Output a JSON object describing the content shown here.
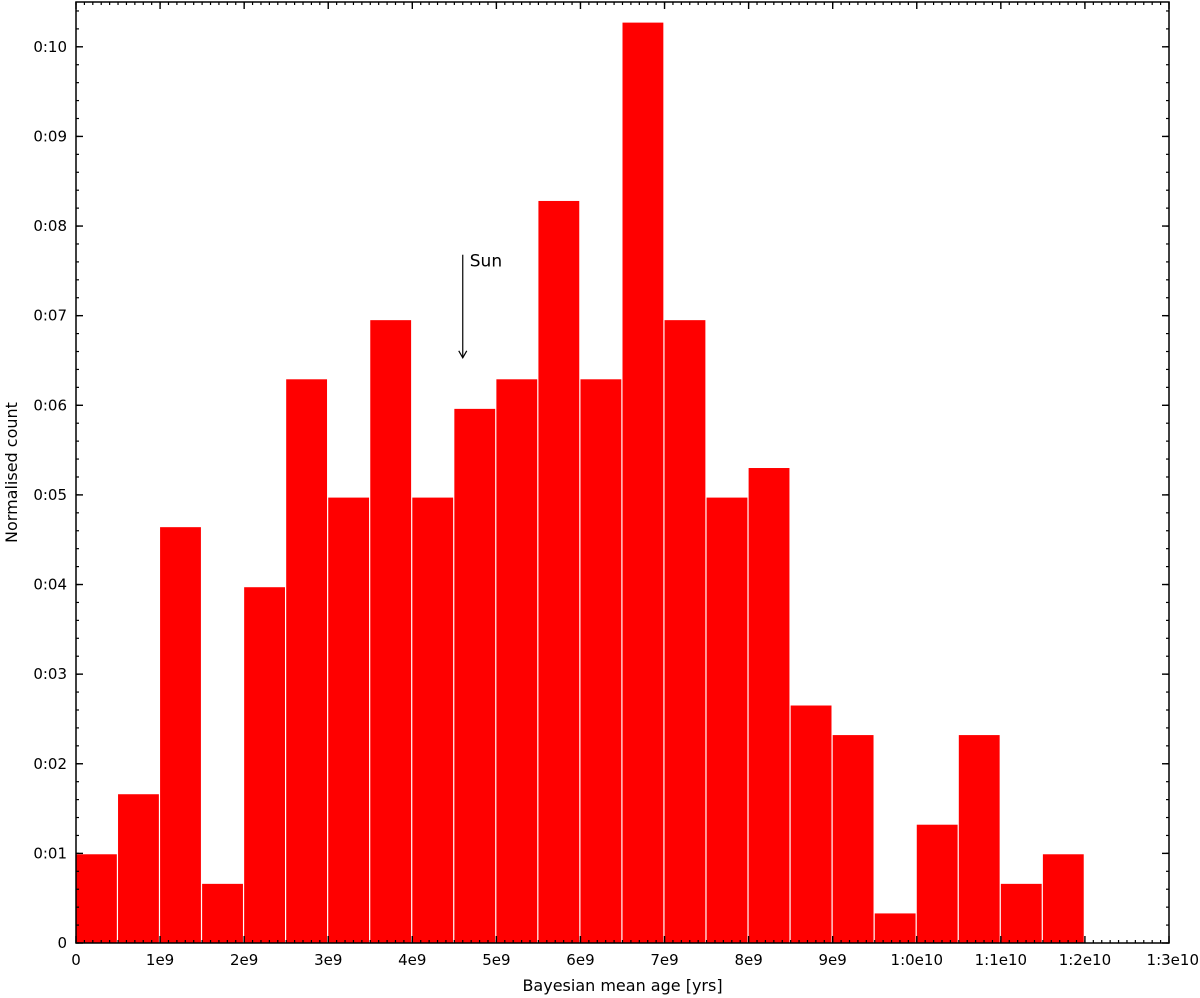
{
  "chart_data": {
    "type": "bar",
    "title": "",
    "xlabel": "Bayesian mean age [yrs]",
    "ylabel": "Normalised count",
    "xlim": [
      0,
      13000000000
    ],
    "ylim": [
      0,
      0.105
    ],
    "bin_width": 500000000,
    "bins": [
      {
        "start": 0,
        "value": 0.0099
      },
      {
        "start": 500000000,
        "value": 0.0166
      },
      {
        "start": 1000000000,
        "value": 0.0464
      },
      {
        "start": 1500000000,
        "value": 0.0066
      },
      {
        "start": 2000000000,
        "value": 0.0397
      },
      {
        "start": 2500000000,
        "value": 0.0629
      },
      {
        "start": 3000000000,
        "value": 0.0497
      },
      {
        "start": 3500000000,
        "value": 0.0695
      },
      {
        "start": 4000000000,
        "value": 0.0497
      },
      {
        "start": 4500000000,
        "value": 0.0596
      },
      {
        "start": 5000000000,
        "value": 0.0629
      },
      {
        "start": 5500000000,
        "value": 0.0828
      },
      {
        "start": 6000000000,
        "value": 0.0629
      },
      {
        "start": 6500000000,
        "value": 0.1027
      },
      {
        "start": 7000000000,
        "value": 0.0695
      },
      {
        "start": 7500000000,
        "value": 0.0497
      },
      {
        "start": 8000000000,
        "value": 0.053
      },
      {
        "start": 8500000000,
        "value": 0.0265
      },
      {
        "start": 9000000000,
        "value": 0.0232
      },
      {
        "start": 9500000000,
        "value": 0.0033
      },
      {
        "start": 10000000000,
        "value": 0.0132
      },
      {
        "start": 10500000000,
        "value": 0.0232
      },
      {
        "start": 11000000000,
        "value": 0.0066
      },
      {
        "start": 11500000000,
        "value": 0.0099
      }
    ],
    "x_ticks": [
      {
        "value": 0,
        "label": "0"
      },
      {
        "value": 1000000000,
        "label": "1e9"
      },
      {
        "value": 2000000000,
        "label": "2e9"
      },
      {
        "value": 3000000000,
        "label": "3e9"
      },
      {
        "value": 4000000000,
        "label": "4e9"
      },
      {
        "value": 5000000000,
        "label": "5e9"
      },
      {
        "value": 6000000000,
        "label": "6e9"
      },
      {
        "value": 7000000000,
        "label": "7e9"
      },
      {
        "value": 8000000000,
        "label": "8e9"
      },
      {
        "value": 9000000000,
        "label": "9e9"
      },
      {
        "value": 10000000000,
        "label": "1:0e10"
      },
      {
        "value": 11000000000,
        "label": "1:1e10"
      },
      {
        "value": 12000000000,
        "label": "1:2e10"
      },
      {
        "value": 13000000000,
        "label": "1:3e10"
      }
    ],
    "y_ticks": [
      {
        "value": 0,
        "label": "0"
      },
      {
        "value": 0.01,
        "label": "0:01"
      },
      {
        "value": 0.02,
        "label": "0:02"
      },
      {
        "value": 0.03,
        "label": "0:03"
      },
      {
        "value": 0.04,
        "label": "0:04"
      },
      {
        "value": 0.05,
        "label": "0:05"
      },
      {
        "value": 0.06,
        "label": "0:06"
      },
      {
        "value": 0.07,
        "label": "0:07"
      },
      {
        "value": 0.08,
        "label": "0:08"
      },
      {
        "value": 0.09,
        "label": "0:09"
      },
      {
        "value": 0.1,
        "label": "0:10"
      }
    ],
    "annotation": {
      "text": "Sun",
      "x": 4600000000,
      "y_from": 0.0768,
      "y_to": 0.0653
    },
    "bar_color": "#ff0000",
    "grid": false,
    "legend": "none"
  }
}
